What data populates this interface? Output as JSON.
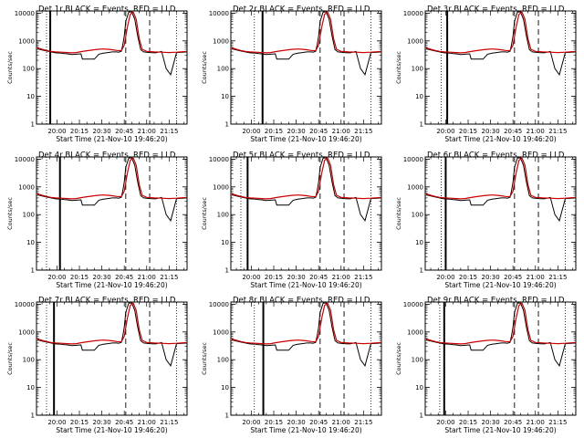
{
  "chart_data": {
    "type": "line",
    "layout": "3x3 grid of panels",
    "shared": {
      "title_template": "Det {det} BLACK = Events, RED = LLD",
      "xlabel": "Start Time (21-Nov-10 19:46:20)",
      "ylabel": "Counts/sec",
      "y_scale": "log",
      "ylim": [
        1,
        12000
      ],
      "y_ticks": [
        1,
        10,
        100,
        1000,
        10000
      ],
      "y_tick_labels": [
        "1",
        "10",
        "100",
        "1000",
        "10000"
      ],
      "xlim_minutes_since_midnight": [
        1186.3,
        1287
      ],
      "x_ticks_minutes": [
        1200,
        1215,
        1230,
        1245,
        1260,
        1275
      ],
      "x_tick_labels": [
        "20:00",
        "20:15",
        "20:30",
        "20:45",
        "21:00",
        "21:15"
      ],
      "colors": {
        "events": "#000000",
        "lld": "#cc0000"
      },
      "series": [
        {
          "name": "Events",
          "color": "#000000",
          "x": [
            1187,
            1190,
            1193,
            1196,
            1199,
            1203,
            1205,
            1207,
            1210,
            1213,
            1216,
            1217,
            1225,
            1228,
            1231,
            1234,
            1237,
            1240,
            1241,
            1243,
            1244,
            1245,
            1246,
            1248,
            1250,
            1252,
            1254,
            1256,
            1258,
            1262,
            1266,
            1270,
            1273,
            1276,
            1280,
            1284,
            1287
          ],
          "y": [
            520,
            470,
            430,
            400,
            370,
            360,
            350,
            340,
            320,
            330,
            340,
            220,
            220,
            330,
            360,
            380,
            400,
            400,
            390,
            420,
            700,
            1500,
            5000,
            11000,
            11000,
            6000,
            1500,
            480,
            400,
            380,
            370,
            420,
            100,
            60,
            380,
            390,
            400
          ]
        },
        {
          "name": "LLD",
          "color": "#cc0000",
          "x": [
            1187,
            1190,
            1193,
            1196,
            1199,
            1203,
            1207,
            1210,
            1213,
            1216,
            1220,
            1225,
            1228,
            1231,
            1234,
            1237,
            1240,
            1243,
            1245,
            1247,
            1249,
            1251,
            1253,
            1255,
            1257,
            1260,
            1265,
            1270,
            1275,
            1280,
            1287
          ],
          "y": [
            560,
            500,
            450,
            420,
            400,
            390,
            380,
            370,
            380,
            410,
            440,
            480,
            500,
            510,
            500,
            480,
            450,
            440,
            700,
            3000,
            9000,
            11000,
            6000,
            1200,
            500,
            420,
            400,
            390,
            380,
            390,
            420
          ]
        }
      ]
    },
    "panels": [
      {
        "det": "1r",
        "vlines": {
          "solid": 1195.5,
          "dotted": [
            1193,
            1280
          ],
          "dashed": [
            1246,
            1262
          ]
        }
      },
      {
        "det": "2r",
        "vlines": {
          "solid": 1207.5,
          "dotted": [
            1202,
            1280
          ],
          "dashed": [
            1246,
            1262
          ]
        }
      },
      {
        "det": "3r",
        "vlines": {
          "solid": 1201,
          "dotted": [
            1197,
            1280
          ],
          "dashed": [
            1246,
            1262
          ]
        }
      },
      {
        "det": "4r",
        "vlines": {
          "solid": 1202,
          "dotted": [
            1193,
            1280
          ],
          "dashed": [
            1246,
            1262
          ]
        }
      },
      {
        "det": "5r",
        "vlines": {
          "solid": 1197.5,
          "dotted": [
            1193,
            1280
          ],
          "dashed": [
            1246,
            1262
          ]
        }
      },
      {
        "det": "6r",
        "vlines": {
          "solid": 1200,
          "dotted": [
            1197,
            1280
          ],
          "dashed": [
            1246,
            1262
          ]
        }
      },
      {
        "det": "7r",
        "vlines": {
          "solid": 1198,
          "dotted": [
            1193,
            1280
          ],
          "dashed": [
            1246,
            1262
          ]
        }
      },
      {
        "det": "8r",
        "vlines": {
          "solid": 1208,
          "dotted": [
            1202,
            1280
          ],
          "dashed": [
            1246,
            1262
          ]
        }
      },
      {
        "det": "9r",
        "vlines": {
          "solid": 1199,
          "dotted": [
            1196,
            1280
          ],
          "dashed": [
            1246,
            1262
          ]
        }
      }
    ]
  }
}
